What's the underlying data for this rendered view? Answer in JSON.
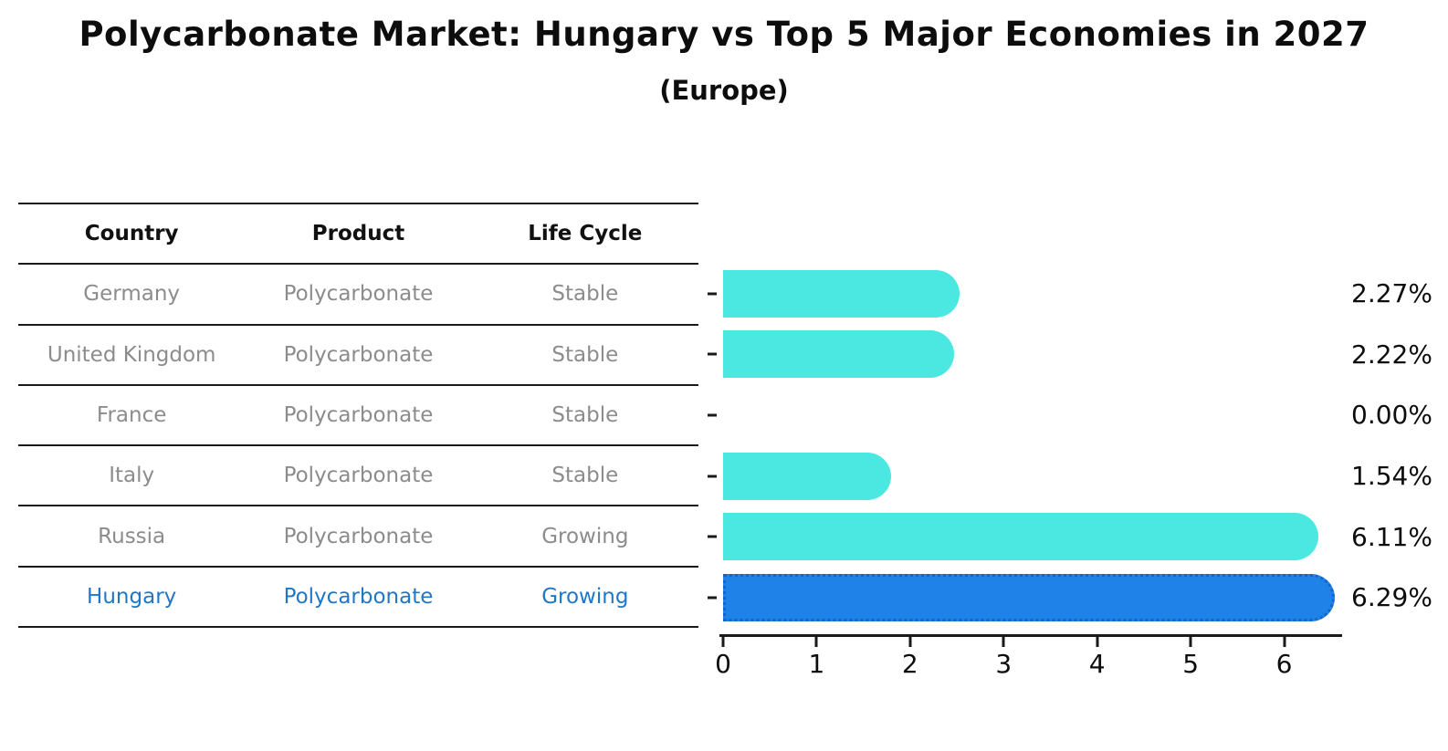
{
  "title": "Polycarbonate Market: Hungary vs Top 5 Major Economies in 2027",
  "subtitle": "(Europe)",
  "table": {
    "headers": [
      "Country",
      "Product",
      "Life Cycle"
    ]
  },
  "chart_data": {
    "type": "bar",
    "orientation": "horizontal",
    "title": "Polycarbonate Market: Hungary vs Top 5 Major Economies in 2027",
    "subtitle": "(Europe)",
    "xlim": [
      0,
      6.6
    ],
    "x_ticks": [
      0,
      1,
      2,
      3,
      4,
      5,
      6
    ],
    "grid": false,
    "rows": [
      {
        "country": "Germany",
        "product": "Polycarbonate",
        "life_cycle": "Stable",
        "value": 2.27,
        "value_label": "2.27%",
        "highlight": false
      },
      {
        "country": "United Kingdom",
        "product": "Polycarbonate",
        "life_cycle": "Stable",
        "value": 2.22,
        "value_label": "2.22%",
        "highlight": false
      },
      {
        "country": "France",
        "product": "Polycarbonate",
        "life_cycle": "Stable",
        "value": 0.0,
        "value_label": "0.00%",
        "highlight": false
      },
      {
        "country": "Italy",
        "product": "Polycarbonate",
        "life_cycle": "Stable",
        "value": 1.54,
        "value_label": "1.54%",
        "highlight": false
      },
      {
        "country": "Russia",
        "product": "Polycarbonate",
        "life_cycle": "Growing",
        "value": 6.11,
        "value_label": "6.11%",
        "highlight": false
      },
      {
        "country": "Hungary",
        "product": "Polycarbonate",
        "life_cycle": "Growing",
        "value": 6.29,
        "value_label": "6.29%",
        "highlight": true
      }
    ],
    "colors": {
      "bar": "#4be8e2",
      "highlight_bar": "#1e82e8",
      "highlight_border": "#1565c8",
      "highlight_text": "#1f77c8",
      "row_text": "#8c8c8c",
      "header_text": "#111111",
      "axis": "#1a1a1a"
    }
  }
}
